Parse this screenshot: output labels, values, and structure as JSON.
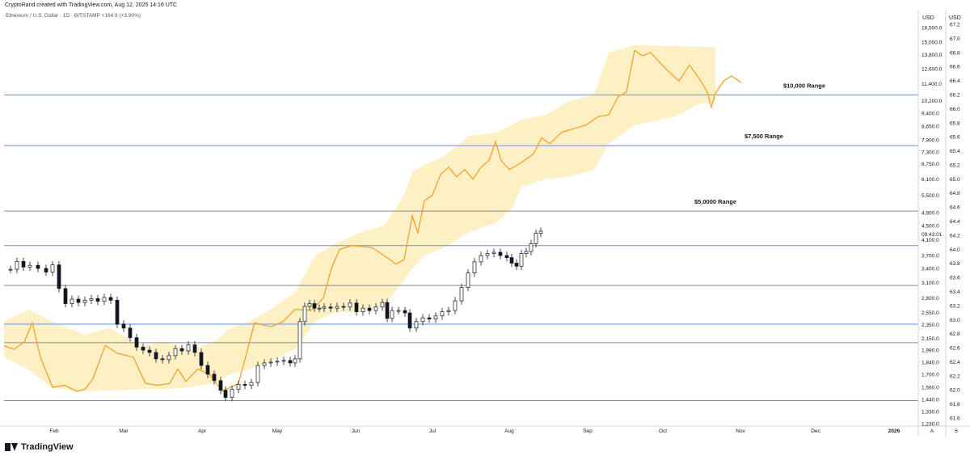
{
  "header": {
    "credit": "CryptoRand created with TradingView.com, Aug 12, 2025 14:16 UTC",
    "symbol_info": "Ethereum / U.S. Dollar · 1D · BITSTAMP  +164.9 (+3.90%)"
  },
  "brand": {
    "name": "TradingView",
    "icon": "tradingview-logo"
  },
  "colors": {
    "band": "#fdf0c4",
    "line": "#f0a32b",
    "level_blue": "#8fa9e0",
    "level_gray": "#8a8a8a",
    "candle": "#131722"
  },
  "chart_data": {
    "type": "candlestick-with-band",
    "y_scale": "log",
    "left_axis_title": "USD",
    "right_axis_title": "USD",
    "left_axis_ticks": [
      "16,500.0",
      "15,000.0",
      "13,800.0",
      "12,600.0",
      "11,400.0",
      "10,200.0",
      "9,400.0",
      "8,650.0",
      "7,900.0",
      "7,300.0",
      "6,750.0",
      "6,100.0",
      "5,500.0",
      "4,900.0",
      "4,500.0",
      "4,100.0",
      "3,700.0",
      "3,400.0",
      "3,100.0",
      "2,800.0",
      "2,550.0",
      "2,350.0",
      "2,150.0",
      "1,990.0",
      "1,840.0",
      "1,700.0",
      "1,560.0",
      "1,440.0",
      "1,330.0",
      "1,230.0"
    ],
    "right_axis_ticks": [
      "67.2",
      "67.0",
      "66.8",
      "66.6",
      "66.4",
      "66.2",
      "66.0",
      "65.8",
      "65.6",
      "65.4",
      "65.2",
      "65.0",
      "64.8",
      "64.6",
      "64.4",
      "64.2",
      "64.0",
      "63.8",
      "63.6",
      "63.4",
      "63.2",
      "63.0",
      "62.8",
      "62.6",
      "62.4",
      "62.2",
      "62.0",
      "61.8",
      "61.6"
    ],
    "price_label": "09:43:01",
    "x_ticks": [
      "Feb",
      "Mar",
      "Apr",
      "May",
      "Jun",
      "Jul",
      "Aug",
      "Sep",
      "Oct",
      "Nov",
      "Dec",
      "2026"
    ],
    "axis_footer": [
      "A",
      "6"
    ],
    "levels": [
      {
        "label": "$10,000 Range",
        "value": 10600,
        "color": "blue"
      },
      {
        "label": "$7,500 Range",
        "value": 7600,
        "color": "blue"
      },
      {
        "label": "$5,0000 Range",
        "value": 4950,
        "color": "gray"
      },
      {
        "label": "",
        "value": 3950,
        "color": "blue"
      },
      {
        "label": "",
        "value": 3040,
        "color": "gray"
      },
      {
        "label": "",
        "value": 2360,
        "color": "blue"
      },
      {
        "label": "",
        "value": 2090,
        "color": "gray"
      },
      {
        "label": "",
        "value": 1430,
        "color": "gray"
      }
    ],
    "line_series": [
      [
        0,
        2050
      ],
      [
        12,
        2000
      ],
      [
        25,
        2100
      ],
      [
        35,
        2380
      ],
      [
        45,
        1900
      ],
      [
        60,
        1560
      ],
      [
        75,
        1580
      ],
      [
        90,
        1520
      ],
      [
        100,
        1540
      ],
      [
        110,
        1650
      ],
      [
        125,
        2050
      ],
      [
        140,
        1950
      ],
      [
        160,
        1900
      ],
      [
        175,
        1600
      ],
      [
        190,
        1580
      ],
      [
        205,
        1600
      ],
      [
        215,
        1760
      ],
      [
        225,
        1620
      ],
      [
        240,
        1760
      ],
      [
        255,
        1690
      ],
      [
        270,
        1520
      ],
      [
        290,
        1600
      ],
      [
        310,
        2380
      ],
      [
        330,
        2320
      ],
      [
        345,
        2400
      ],
      [
        360,
        2600
      ],
      [
        380,
        2580
      ],
      [
        395,
        2800
      ],
      [
        405,
        3400
      ],
      [
        415,
        3850
      ],
      [
        430,
        3950
      ],
      [
        455,
        3900
      ],
      [
        470,
        3700
      ],
      [
        485,
        3500
      ],
      [
        495,
        3600
      ],
      [
        505,
        4800
      ],
      [
        512,
        4300
      ],
      [
        520,
        5300
      ],
      [
        530,
        5500
      ],
      [
        540,
        6300
      ],
      [
        550,
        6600
      ],
      [
        560,
        6200
      ],
      [
        570,
        6500
      ],
      [
        580,
        6100
      ],
      [
        590,
        6600
      ],
      [
        600,
        6900
      ],
      [
        608,
        7800
      ],
      [
        615,
        6900
      ],
      [
        625,
        6500
      ],
      [
        640,
        6800
      ],
      [
        655,
        7200
      ],
      [
        665,
        8000
      ],
      [
        675,
        7700
      ],
      [
        690,
        8300
      ],
      [
        705,
        8500
      ],
      [
        720,
        8700
      ],
      [
        735,
        9200
      ],
      [
        748,
        9300
      ],
      [
        760,
        10500
      ],
      [
        770,
        10800
      ],
      [
        780,
        14200
      ],
      [
        790,
        13700
      ],
      [
        800,
        14000
      ],
      [
        810,
        13200
      ],
      [
        820,
        12500
      ],
      [
        835,
        11600
      ],
      [
        848,
        12900
      ],
      [
        860,
        11800
      ],
      [
        870,
        10800
      ],
      [
        875,
        9800
      ],
      [
        880,
        10700
      ],
      [
        890,
        11600
      ],
      [
        900,
        12000
      ],
      [
        912,
        11500
      ]
    ],
    "band_upper": [
      [
        0,
        2400
      ],
      [
        30,
        2600
      ],
      [
        60,
        2400
      ],
      [
        100,
        2200
      ],
      [
        130,
        2300
      ],
      [
        170,
        2050
      ],
      [
        200,
        2100
      ],
      [
        230,
        2000
      ],
      [
        260,
        2100
      ],
      [
        280,
        2300
      ],
      [
        300,
        2380
      ],
      [
        330,
        2600
      ],
      [
        360,
        2900
      ],
      [
        385,
        3700
      ],
      [
        410,
        4000
      ],
      [
        440,
        4300
      ],
      [
        470,
        4500
      ],
      [
        495,
        5500
      ],
      [
        505,
        6400
      ],
      [
        520,
        6700
      ],
      [
        545,
        7100
      ],
      [
        575,
        8100
      ],
      [
        610,
        8300
      ],
      [
        640,
        9000
      ],
      [
        670,
        9300
      ],
      [
        700,
        10200
      ],
      [
        730,
        10600
      ],
      [
        748,
        14000
      ],
      [
        780,
        14700
      ],
      [
        830,
        14600
      ],
      [
        880,
        14500
      ]
    ],
    "band_lower": [
      [
        0,
        1900
      ],
      [
        30,
        1750
      ],
      [
        60,
        1550
      ],
      [
        100,
        1520
      ],
      [
        130,
        1530
      ],
      [
        170,
        1540
      ],
      [
        200,
        1540
      ],
      [
        230,
        1560
      ],
      [
        260,
        1600
      ],
      [
        280,
        1700
      ],
      [
        300,
        1750
      ],
      [
        330,
        1850
      ],
      [
        360,
        2000
      ],
      [
        385,
        2400
      ],
      [
        410,
        2550
      ],
      [
        440,
        2550
      ],
      [
        470,
        2650
      ],
      [
        495,
        3150
      ],
      [
        505,
        3400
      ],
      [
        520,
        3700
      ],
      [
        545,
        3900
      ],
      [
        575,
        4300
      ],
      [
        610,
        4600
      ],
      [
        630,
        5100
      ],
      [
        640,
        5800
      ],
      [
        670,
        6100
      ],
      [
        700,
        6200
      ],
      [
        730,
        6500
      ],
      [
        748,
        7700
      ],
      [
        780,
        8700
      ],
      [
        830,
        9200
      ],
      [
        860,
        10000
      ],
      [
        880,
        10100
      ]
    ],
    "candles": [
      [
        8,
        3380
      ],
      [
        16,
        3560
      ],
      [
        24,
        3430
      ],
      [
        32,
        3470
      ],
      [
        42,
        3400
      ],
      [
        52,
        3320
      ],
      [
        60,
        3480
      ],
      [
        68,
        2980
      ],
      [
        76,
        2700
      ],
      [
        84,
        2780
      ],
      [
        92,
        2720
      ],
      [
        100,
        2760
      ],
      [
        108,
        2790
      ],
      [
        116,
        2740
      ],
      [
        124,
        2810
      ],
      [
        132,
        2760
      ],
      [
        140,
        2360
      ],
      [
        148,
        2300
      ],
      [
        156,
        2160
      ],
      [
        164,
        2030
      ],
      [
        172,
        1990
      ],
      [
        180,
        1960
      ],
      [
        188,
        1880
      ],
      [
        196,
        1870
      ],
      [
        204,
        1920
      ],
      [
        212,
        2010
      ],
      [
        220,
        1980
      ],
      [
        228,
        2060
      ],
      [
        236,
        1960
      ],
      [
        244,
        1800
      ],
      [
        252,
        1700
      ],
      [
        260,
        1630
      ],
      [
        268,
        1530
      ],
      [
        274,
        1460
      ],
      [
        282,
        1540
      ],
      [
        290,
        1590
      ],
      [
        298,
        1580
      ],
      [
        306,
        1610
      ],
      [
        314,
        1800
      ],
      [
        322,
        1830
      ],
      [
        330,
        1840
      ],
      [
        338,
        1850
      ],
      [
        346,
        1860
      ],
      [
        354,
        1830
      ],
      [
        360,
        1880
      ],
      [
        366,
        2400
      ],
      [
        372,
        2650
      ],
      [
        378,
        2700
      ],
      [
        384,
        2620
      ],
      [
        390,
        2620
      ],
      [
        396,
        2640
      ],
      [
        404,
        2620
      ],
      [
        412,
        2650
      ],
      [
        420,
        2640
      ],
      [
        428,
        2710
      ],
      [
        436,
        2560
      ],
      [
        444,
        2620
      ],
      [
        452,
        2580
      ],
      [
        460,
        2640
      ],
      [
        468,
        2720
      ],
      [
        474,
        2450
      ],
      [
        480,
        2580
      ],
      [
        488,
        2580
      ],
      [
        496,
        2540
      ],
      [
        502,
        2300
      ],
      [
        510,
        2400
      ],
      [
        518,
        2460
      ],
      [
        526,
        2440
      ],
      [
        534,
        2490
      ],
      [
        542,
        2560
      ],
      [
        550,
        2580
      ],
      [
        558,
        2750
      ],
      [
        566,
        3000
      ],
      [
        574,
        3300
      ],
      [
        582,
        3550
      ],
      [
        590,
        3700
      ],
      [
        598,
        3750
      ],
      [
        606,
        3780
      ],
      [
        614,
        3700
      ],
      [
        622,
        3650
      ],
      [
        628,
        3520
      ],
      [
        634,
        3450
      ],
      [
        640,
        3750
      ],
      [
        646,
        3800
      ],
      [
        652,
        4000
      ],
      [
        658,
        4280
      ],
      [
        664,
        4340
      ]
    ]
  }
}
